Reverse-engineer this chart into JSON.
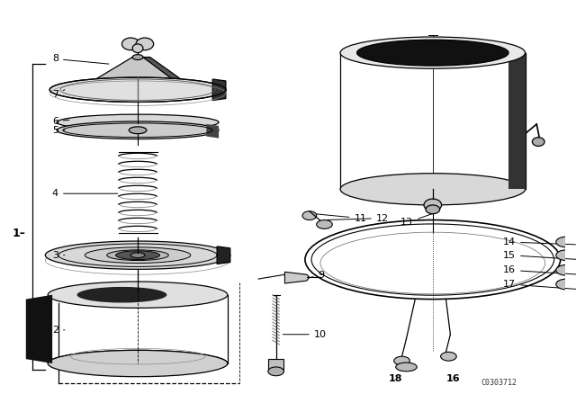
{
  "background_color": "#ffffff",
  "line_color": "#000000",
  "watermark": "C0303712",
  "fig_width": 6.4,
  "fig_height": 4.48,
  "dpi": 100
}
